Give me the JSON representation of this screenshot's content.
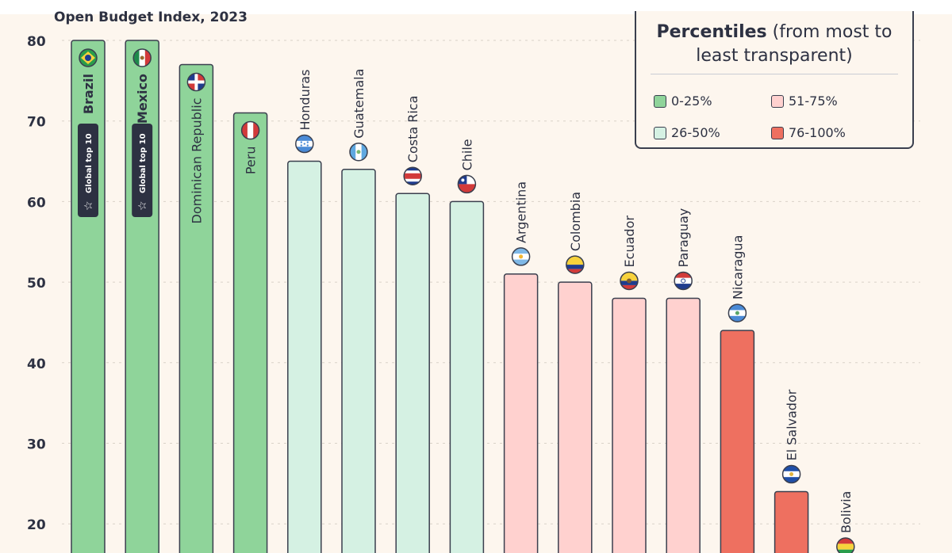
{
  "chart_data": {
    "type": "bar",
    "title": "Open Budget Index, 2023",
    "ylim": [
      15,
      82
    ],
    "yticks": [
      20,
      30,
      40,
      50,
      60,
      70,
      80
    ],
    "grid": true,
    "legend_placement": "top-right",
    "legend": {
      "title_bold": "Percentiles",
      "title_rest": " (from most to least transparent)",
      "items": [
        {
          "label": "0-25%",
          "color": "#8fd49a"
        },
        {
          "label": "51-75%",
          "color": "#ffd1cf"
        },
        {
          "label": "26-50%",
          "color": "#d5f1e3"
        },
        {
          "label": "76-100%",
          "color": "#ee7060"
        }
      ]
    },
    "badge_text": "Global top 10",
    "bars": [
      {
        "country": "Brazil",
        "value": 80,
        "group": 0,
        "top10": true,
        "flag": "brazil-flag-icon"
      },
      {
        "country": "Mexico",
        "value": 80,
        "group": 0,
        "top10": true,
        "flag": "mexico-flag-icon"
      },
      {
        "country": "Dominican Republic",
        "value": 77,
        "group": 0,
        "top10": false,
        "flag": "dominican-republic-flag-icon"
      },
      {
        "country": "Peru",
        "value": 71,
        "group": 0,
        "top10": false,
        "flag": "peru-flag-icon"
      },
      {
        "country": "Honduras",
        "value": 65,
        "group": 2,
        "top10": false,
        "flag": "honduras-flag-icon"
      },
      {
        "country": "Guatemala",
        "value": 64,
        "group": 2,
        "top10": false,
        "flag": "guatemala-flag-icon"
      },
      {
        "country": "Costa Rica",
        "value": 61,
        "group": 2,
        "top10": false,
        "flag": "costa-rica-flag-icon"
      },
      {
        "country": "Chile",
        "value": 60,
        "group": 2,
        "top10": false,
        "flag": "chile-flag-icon"
      },
      {
        "country": "Argentina",
        "value": 51,
        "group": 1,
        "top10": false,
        "flag": "argentina-flag-icon"
      },
      {
        "country": "Colombia",
        "value": 50,
        "group": 1,
        "top10": false,
        "flag": "colombia-flag-icon"
      },
      {
        "country": "Ecuador",
        "value": 48,
        "group": 1,
        "top10": false,
        "flag": "ecuador-flag-icon"
      },
      {
        "country": "Paraguay",
        "value": 48,
        "group": 1,
        "top10": false,
        "flag": "paraguay-flag-icon"
      },
      {
        "country": "Nicaragua",
        "value": 44,
        "group": 3,
        "top10": false,
        "flag": "nicaragua-flag-icon"
      },
      {
        "country": "El Salvador",
        "value": 24,
        "group": 3,
        "top10": false,
        "flag": "el-salvador-flag-icon"
      },
      {
        "country": "Bolivia",
        "value": 15,
        "group": 3,
        "top10": false,
        "flag": "bolivia-flag-icon"
      }
    ]
  }
}
